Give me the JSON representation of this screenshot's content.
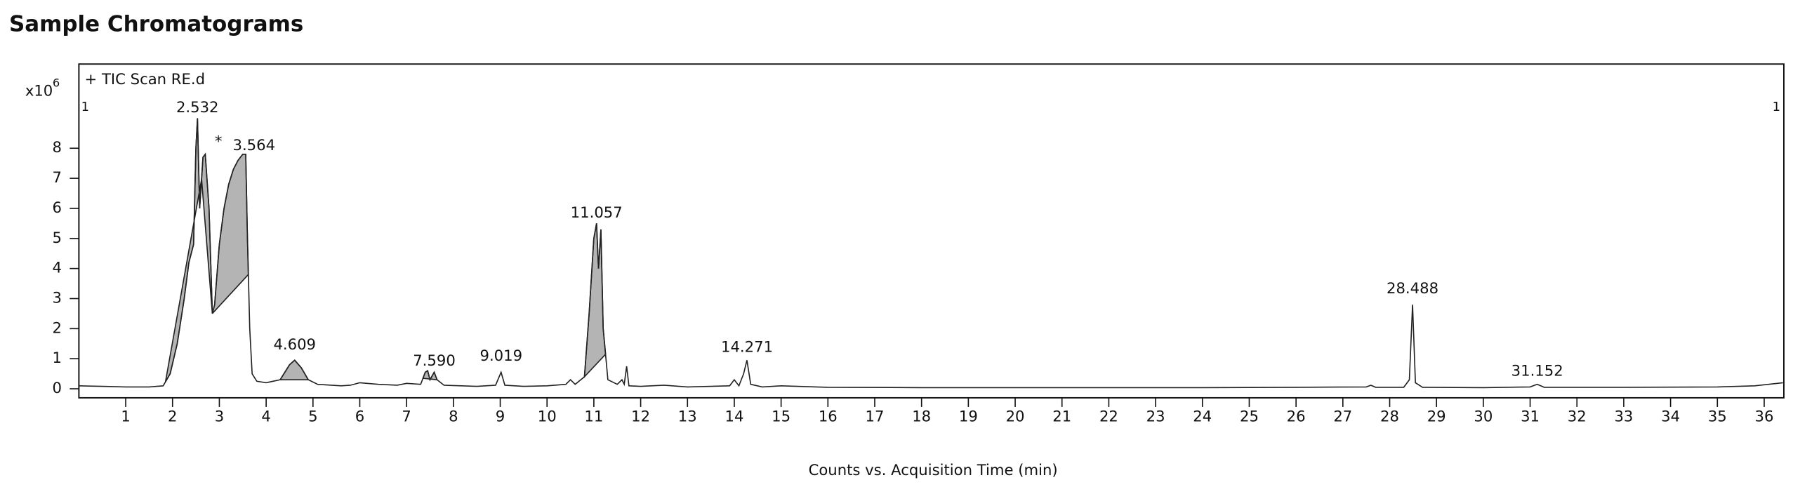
{
  "chart_data": {
    "type": "line",
    "title": "Sample Chromatograms",
    "xlabel": "Counts vs. Acquisition Time (min)",
    "y_unit": {
      "base": "x10",
      "exponent": "6"
    },
    "trace_label": "+ TIC Scan RE.d",
    "range_markers": [
      "1",
      "1"
    ],
    "x": [
      0,
      0.5,
      1.0,
      1.5,
      1.8,
      1.95,
      2.1,
      2.25,
      2.35,
      2.45,
      2.5,
      2.532,
      2.58,
      2.65,
      2.7,
      2.78,
      2.85,
      2.9,
      3.0,
      3.1,
      3.2,
      3.3,
      3.4,
      3.5,
      3.564,
      3.6,
      3.65,
      3.7,
      3.8,
      4.0,
      4.3,
      4.5,
      4.609,
      4.75,
      4.9,
      5.1,
      5.6,
      5.8,
      6.0,
      6.4,
      6.8,
      7.0,
      7.3,
      7.4,
      7.45,
      7.5,
      7.59,
      7.65,
      7.8,
      8.5,
      8.9,
      9.019,
      9.1,
      9.5,
      10.0,
      10.4,
      10.5,
      10.6,
      10.8,
      10.9,
      11.0,
      11.057,
      11.1,
      11.15,
      11.2,
      11.3,
      11.5,
      11.6,
      11.65,
      11.7,
      11.75,
      12.0,
      12.5,
      13.0,
      13.9,
      14.0,
      14.1,
      14.2,
      14.271,
      14.35,
      14.6,
      15.0,
      16,
      18,
      20,
      22,
      24,
      26,
      27.5,
      27.6,
      27.7,
      28.3,
      28.42,
      28.488,
      28.55,
      28.7,
      30,
      31.0,
      31.152,
      31.3,
      33,
      35,
      35.8,
      36.4
    ],
    "series": [
      {
        "name": "TIC",
        "color": "#222222",
        "values": [
          0.1,
          0.08,
          0.06,
          0.06,
          0.1,
          0.5,
          1.5,
          3.0,
          4.2,
          4.8,
          8.0,
          9.0,
          6.0,
          7.7,
          7.8,
          6.0,
          2.5,
          2.8,
          4.8,
          6.0,
          6.8,
          7.3,
          7.6,
          7.8,
          7.8,
          5.0,
          2.0,
          0.5,
          0.25,
          0.2,
          0.3,
          0.8,
          0.95,
          0.7,
          0.3,
          0.15,
          0.1,
          0.12,
          0.2,
          0.15,
          0.12,
          0.18,
          0.15,
          0.55,
          0.6,
          0.3,
          0.55,
          0.3,
          0.12,
          0.08,
          0.12,
          0.55,
          0.12,
          0.08,
          0.1,
          0.15,
          0.3,
          0.15,
          0.4,
          2.5,
          5.0,
          5.5,
          4.0,
          5.3,
          2.0,
          0.3,
          0.15,
          0.3,
          0.15,
          0.75,
          0.1,
          0.08,
          0.12,
          0.06,
          0.1,
          0.3,
          0.1,
          0.5,
          0.95,
          0.15,
          0.06,
          0.1,
          0.05,
          0.04,
          0.04,
          0.04,
          0.04,
          0.05,
          0.06,
          0.12,
          0.05,
          0.05,
          0.3,
          2.8,
          0.2,
          0.05,
          0.04,
          0.06,
          0.15,
          0.05,
          0.05,
          0.06,
          0.1,
          0.2
        ]
      }
    ],
    "integrated_regions": [
      [
        1.85,
        2.62
      ],
      [
        2.62,
        2.85
      ],
      [
        2.85,
        3.62
      ],
      [
        4.3,
        4.9
      ],
      [
        7.35,
        7.65
      ],
      [
        10.8,
        11.25
      ]
    ],
    "region_color": "#b4b4b4",
    "annotations": [
      {
        "label": "2.532",
        "x": 2.532,
        "y": 9.33
      },
      {
        "label": "*",
        "x": 2.98,
        "y": 8.2
      },
      {
        "label": "3.564",
        "x": 3.74,
        "y": 8.08
      },
      {
        "label": "4.609",
        "x": 4.609,
        "y": 1.45
      },
      {
        "label": "7.590",
        "x": 7.59,
        "y": 0.91
      },
      {
        "label": "9.019",
        "x": 9.019,
        "y": 1.07
      },
      {
        "label": "11.057",
        "x": 11.057,
        "y": 5.83
      },
      {
        "label": "14.271",
        "x": 14.271,
        "y": 1.37
      },
      {
        "label": "28.488",
        "x": 28.488,
        "y": 3.31
      },
      {
        "label": "31.152",
        "x": 31.152,
        "y": 0.57
      }
    ],
    "xlim": [
      0,
      36.42
    ],
    "ylim": [
      -0.3,
      10.8
    ],
    "xticks": [
      1,
      2,
      3,
      4,
      5,
      6,
      7,
      8,
      9,
      10,
      11,
      12,
      13,
      14,
      15,
      16,
      17,
      18,
      19,
      20,
      21,
      22,
      23,
      24,
      25,
      26,
      27,
      28,
      29,
      30,
      31,
      32,
      33,
      34,
      35,
      36
    ],
    "yticks": [
      0,
      1,
      2,
      3,
      4,
      5,
      6,
      7,
      8
    ]
  }
}
